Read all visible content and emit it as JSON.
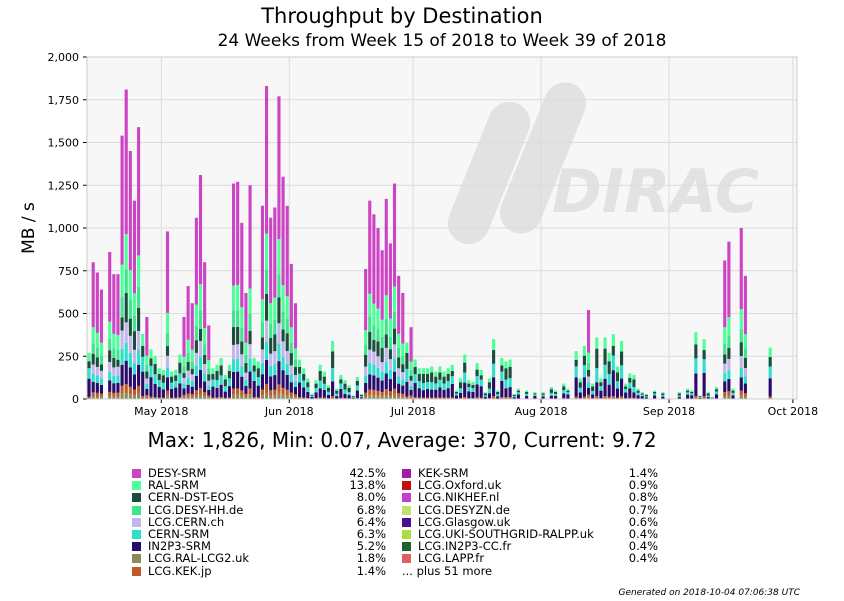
{
  "chart_data": {
    "type": "bar",
    "stacked": true,
    "title": "Throughput by Destination",
    "subtitle": "24 Weeks from Week 15 of 2018 to Week 39 of 2018",
    "ylabel": "MB / s",
    "xlabel": "",
    "ylim": [
      0,
      2000
    ],
    "yticks": [
      0,
      250,
      500,
      750,
      1000,
      1250,
      1500,
      1750,
      2000
    ],
    "ytick_labels": [
      "0",
      "250",
      "500",
      "750",
      "1,000",
      "1,250",
      "1,500",
      "1,750",
      "2,000"
    ],
    "xticks": [
      {
        "label": "May 2018",
        "day": 18
      },
      {
        "label": "Jun 2018",
        "day": 49
      },
      {
        "label": "Jul 2018",
        "day": 79
      },
      {
        "label": "Aug 2018",
        "day": 110
      },
      {
        "label": "Sep 2018",
        "day": 141
      },
      {
        "label": "Oct 2018",
        "day": 171
      }
    ],
    "x_range_days": [
      0,
      172
    ],
    "grid": true,
    "watermark": "DIRAC",
    "stats_text": "Max: 1,826, Min: 0.07, Average: 370, Current: 9.72",
    "totals": [
      [
        1,
        270
      ],
      [
        2,
        800
      ],
      [
        3,
        740
      ],
      [
        4,
        640
      ],
      [
        6,
        860
      ],
      [
        7,
        730
      ],
      [
        8,
        730
      ],
      [
        9,
        1540
      ],
      [
        10,
        1810
      ],
      [
        11,
        1450
      ],
      [
        12,
        1160
      ],
      [
        13,
        1590
      ],
      [
        14,
        380
      ],
      [
        15,
        480
      ],
      [
        16,
        290
      ],
      [
        17,
        250
      ],
      [
        18,
        180
      ],
      [
        19,
        170
      ],
      [
        20,
        980
      ],
      [
        21,
        160
      ],
      [
        22,
        170
      ],
      [
        23,
        260
      ],
      [
        24,
        480
      ],
      [
        25,
        660
      ],
      [
        26,
        560
      ],
      [
        27,
        1060
      ],
      [
        28,
        1310
      ],
      [
        29,
        800
      ],
      [
        30,
        430
      ],
      [
        31,
        180
      ],
      [
        32,
        200
      ],
      [
        33,
        240
      ],
      [
        34,
        140
      ],
      [
        35,
        200
      ],
      [
        36,
        1260
      ],
      [
        37,
        1270
      ],
      [
        38,
        1030
      ],
      [
        39,
        620
      ],
      [
        40,
        1250
      ],
      [
        41,
        240
      ],
      [
        42,
        220
      ],
      [
        43,
        1130
      ],
      [
        44,
        1830
      ],
      [
        45,
        1060
      ],
      [
        46,
        1120
      ],
      [
        47,
        1770
      ],
      [
        48,
        1300
      ],
      [
        49,
        1130
      ],
      [
        50,
        790
      ],
      [
        51,
        560
      ],
      [
        52,
        230
      ],
      [
        53,
        180
      ],
      [
        54,
        120
      ],
      [
        55,
        30
      ],
      [
        56,
        110
      ],
      [
        57,
        200
      ],
      [
        58,
        160
      ],
      [
        59,
        80
      ],
      [
        60,
        340
      ],
      [
        61,
        60
      ],
      [
        62,
        140
      ],
      [
        63,
        110
      ],
      [
        64,
        80
      ],
      [
        65,
        20
      ],
      [
        66,
        130
      ],
      [
        67,
        30
      ],
      [
        68,
        760
      ],
      [
        69,
        1160
      ],
      [
        70,
        1080
      ],
      [
        71,
        1000
      ],
      [
        72,
        870
      ],
      [
        73,
        1170
      ],
      [
        74,
        910
      ],
      [
        75,
        1260
      ],
      [
        76,
        720
      ],
      [
        77,
        620
      ],
      [
        78,
        330
      ],
      [
        79,
        420
      ],
      [
        80,
        230
      ],
      [
        81,
        180
      ],
      [
        82,
        180
      ],
      [
        83,
        180
      ],
      [
        84,
        190
      ],
      [
        85,
        160
      ],
      [
        86,
        190
      ],
      [
        87,
        160
      ],
      [
        88,
        180
      ],
      [
        89,
        200
      ],
      [
        90,
        50
      ],
      [
        91,
        120
      ],
      [
        92,
        260
      ],
      [
        93,
        110
      ],
      [
        94,
        100
      ],
      [
        95,
        210
      ],
      [
        96,
        170
      ],
      [
        97,
        40
      ],
      [
        98,
        120
      ],
      [
        99,
        350
      ],
      [
        100,
        50
      ],
      [
        101,
        240
      ],
      [
        102,
        220
      ],
      [
        103,
        230
      ],
      [
        104,
        30
      ],
      [
        105,
        60
      ],
      [
        107,
        50
      ],
      [
        109,
        40
      ],
      [
        111,
        40
      ],
      [
        113,
        70
      ],
      [
        114,
        50
      ],
      [
        116,
        90
      ],
      [
        117,
        60
      ],
      [
        119,
        280
      ],
      [
        120,
        120
      ],
      [
        121,
        310
      ],
      [
        122,
        520
      ],
      [
        123,
        90
      ],
      [
        124,
        360
      ],
      [
        125,
        120
      ],
      [
        126,
        360
      ],
      [
        127,
        270
      ],
      [
        128,
        380
      ],
      [
        129,
        190
      ],
      [
        130,
        340
      ],
      [
        131,
        90
      ],
      [
        132,
        150
      ],
      [
        133,
        140
      ],
      [
        134,
        60
      ],
      [
        135,
        40
      ],
      [
        136,
        30
      ],
      [
        138,
        50
      ],
      [
        140,
        40
      ],
      [
        144,
        40
      ],
      [
        146,
        60
      ],
      [
        147,
        50
      ],
      [
        148,
        390
      ],
      [
        149,
        20
      ],
      [
        150,
        350
      ],
      [
        151,
        40
      ],
      [
        152,
        10
      ],
      [
        153,
        70
      ],
      [
        155,
        810
      ],
      [
        156,
        920
      ],
      [
        157,
        60
      ],
      [
        159,
        1000
      ],
      [
        160,
        720
      ],
      [
        166,
        300
      ]
    ]
  },
  "legend": {
    "left": [
      {
        "name": "DESY-SRM",
        "pct": "42.5%",
        "color": "#cc44c4"
      },
      {
        "name": "RAL-SRM",
        "pct": "13.8%",
        "color": "#4cff98"
      },
      {
        "name": "CERN-DST-EOS",
        "pct": "8.0%",
        "color": "#1a4d3c"
      },
      {
        "name": "LCG.DESY-HH.de",
        "pct": "6.8%",
        "color": "#3ee58e"
      },
      {
        "name": "LCG.CERN.ch",
        "pct": "6.4%",
        "color": "#c3b5ee"
      },
      {
        "name": "CERN-SRM",
        "pct": "6.3%",
        "color": "#2ee0cc"
      },
      {
        "name": "IN2P3-SRM",
        "pct": "5.2%",
        "color": "#2a0a6a"
      },
      {
        "name": "LCG.RAL-LCG2.uk",
        "pct": "1.8%",
        "color": "#8a8a5a"
      },
      {
        "name": "LCG.KEK.jp",
        "pct": "1.4%",
        "color": "#c05a2a"
      }
    ],
    "right": [
      {
        "name": "KEK-SRM",
        "pct": "1.4%",
        "color": "#a21caa"
      },
      {
        "name": "LCG.Oxford.uk",
        "pct": "0.9%",
        "color": "#c01010"
      },
      {
        "name": "LCG.NIKHEF.nl",
        "pct": "0.8%",
        "color": "#c440c4"
      },
      {
        "name": "LCG.DESYZN.de",
        "pct": "0.7%",
        "color": "#c4e070"
      },
      {
        "name": "LCG.Glasgow.uk",
        "pct": "0.6%",
        "color": "#4a1090"
      },
      {
        "name": "LCG.UKI-SOUTHGRID-RALPP.uk",
        "pct": "0.4%",
        "color": "#a8e040"
      },
      {
        "name": "LCG.IN2P3-CC.fr",
        "pct": "0.4%",
        "color": "#20602a"
      },
      {
        "name": "LCG.LAPP.fr",
        "pct": "0.4%",
        "color": "#e06060"
      },
      {
        "name": "... plus 51 more",
        "pct": "",
        "color": ""
      }
    ]
  },
  "footer": "Generated on 2018-10-04 07:06:38 UTC"
}
